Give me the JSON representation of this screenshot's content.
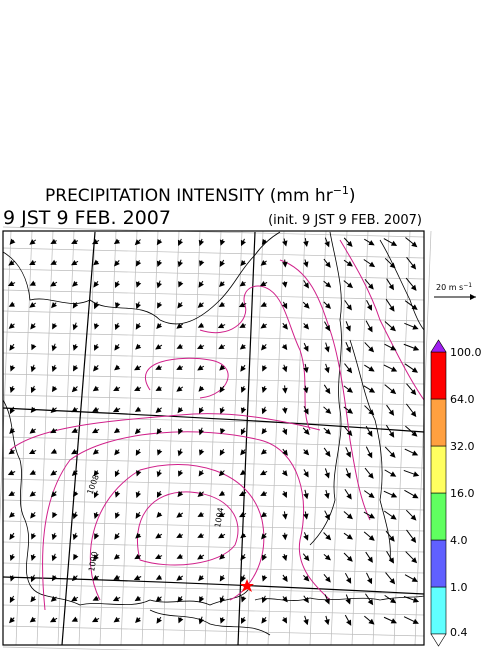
{
  "header": {
    "title": "PRECIPITATION INTENSITY (mm hr",
    "title_superscript": "−1",
    "title_end": ")",
    "valid_time": "9 JST 9 FEB. 2007",
    "init_time": "(init. 9 JST 9 FEB. 2007)"
  },
  "wind_scale": {
    "label": "20 m s",
    "label_superscript": "−1"
  },
  "colorbar": {
    "levels": [
      {
        "value": 0.4,
        "label": "0.4"
      },
      {
        "value": 1,
        "label": "1.0"
      },
      {
        "value": 4,
        "label": "4.0"
      },
      {
        "value": 16,
        "label": "16.0"
      },
      {
        "value": 32,
        "label": "32.0"
      },
      {
        "value": 64,
        "label": "64.0"
      },
      {
        "value": 100,
        "label": "100.0"
      }
    ],
    "colors": [
      "#60ffff",
      "#6060ff",
      "#60ff60",
      "#ffff60",
      "#ffa040",
      "#ff0000"
    ],
    "under_color": "#ffffff",
    "over_color": "#a020f0"
  },
  "contour_labels": [
    "1008",
    "1004",
    "1000"
  ]
}
